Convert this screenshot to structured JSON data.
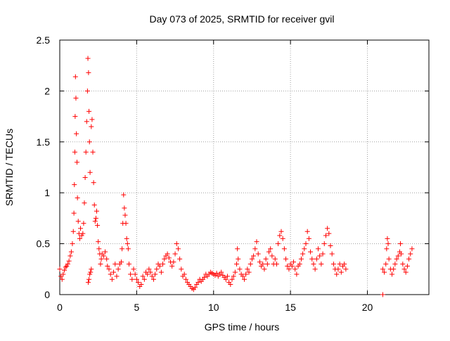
{
  "chart_data": {
    "type": "scatter",
    "title": "Day 073 of 2025, SRMTID for receiver gvil",
    "xlabel": "GPS time / hours",
    "ylabel": "SRMTID / TECUs",
    "xlim": [
      0,
      24
    ],
    "ylim": [
      0,
      2.5
    ],
    "xticks": [
      0,
      5,
      10,
      15,
      20
    ],
    "xtick_labels": [
      "0",
      "5",
      "10",
      "15",
      "20"
    ],
    "yticks": [
      0,
      0.5,
      1,
      1.5,
      2,
      2.5
    ],
    "ytick_labels": [
      "0",
      "0.5",
      "1",
      "1.5",
      "2",
      "2.5"
    ],
    "grid": true,
    "marker": "+",
    "series": [
      {
        "name": "SRMTID",
        "color": "#ff0000",
        "points": [
          [
            0.0,
            0.25
          ],
          [
            0.08,
            0.18
          ],
          [
            0.15,
            0.15
          ],
          [
            0.22,
            0.2
          ],
          [
            0.3,
            0.24
          ],
          [
            0.38,
            0.27
          ],
          [
            0.45,
            0.28
          ],
          [
            0.52,
            0.3
          ],
          [
            0.6,
            0.33
          ],
          [
            0.68,
            0.38
          ],
          [
            0.75,
            0.42
          ],
          [
            0.82,
            0.5
          ],
          [
            0.88,
            0.62
          ],
          [
            0.92,
            0.8
          ],
          [
            0.95,
            1.08
          ],
          [
            0.98,
            1.4
          ],
          [
            1.0,
            1.75
          ],
          [
            1.02,
            2.14
          ],
          [
            1.05,
            1.93
          ],
          [
            1.08,
            1.58
          ],
          [
            1.12,
            1.3
          ],
          [
            1.15,
            0.95
          ],
          [
            1.2,
            0.72
          ],
          [
            1.25,
            0.6
          ],
          [
            1.3,
            0.55
          ],
          [
            1.35,
            0.65
          ],
          [
            1.42,
            0.58
          ],
          [
            1.5,
            0.6
          ],
          [
            1.55,
            0.7
          ],
          [
            1.6,
            0.9
          ],
          [
            1.65,
            1.15
          ],
          [
            1.7,
            1.4
          ],
          [
            1.75,
            1.7
          ],
          [
            1.8,
            2.0
          ],
          [
            1.83,
            2.32
          ],
          [
            1.87,
            2.18
          ],
          [
            1.9,
            1.8
          ],
          [
            1.93,
            1.5
          ],
          [
            1.97,
            1.2
          ],
          [
            1.85,
            0.12
          ],
          [
            1.9,
            0.15
          ],
          [
            1.95,
            0.2
          ],
          [
            2.0,
            0.22
          ],
          [
            2.05,
            0.25
          ],
          [
            2.05,
            1.65
          ],
          [
            2.1,
            1.72
          ],
          [
            2.15,
            1.4
          ],
          [
            2.2,
            1.1
          ],
          [
            2.25,
            0.88
          ],
          [
            2.3,
            0.72
          ],
          [
            2.35,
            0.75
          ],
          [
            2.4,
            0.82
          ],
          [
            2.45,
            0.68
          ],
          [
            2.5,
            0.52
          ],
          [
            2.55,
            0.45
          ],
          [
            2.6,
            0.4
          ],
          [
            2.65,
            0.3
          ],
          [
            2.7,
            0.35
          ],
          [
            2.75,
            0.4
          ],
          [
            2.85,
            0.38
          ],
          [
            2.95,
            0.42
          ],
          [
            3.05,
            0.35
          ],
          [
            3.1,
            0.28
          ],
          [
            3.2,
            0.25
          ],
          [
            3.3,
            0.2
          ],
          [
            3.4,
            0.15
          ],
          [
            3.5,
            0.22
          ],
          [
            3.6,
            0.3
          ],
          [
            3.7,
            0.18
          ],
          [
            3.8,
            0.25
          ],
          [
            3.9,
            0.3
          ],
          [
            4.0,
            0.32
          ],
          [
            4.05,
            0.45
          ],
          [
            4.1,
            0.7
          ],
          [
            4.15,
            0.98
          ],
          [
            4.2,
            0.85
          ],
          [
            4.25,
            0.78
          ],
          [
            4.3,
            0.7
          ],
          [
            4.35,
            0.55
          ],
          [
            4.4,
            0.5
          ],
          [
            4.45,
            0.45
          ],
          [
            4.5,
            0.3
          ],
          [
            4.6,
            0.2
          ],
          [
            4.7,
            0.15
          ],
          [
            4.8,
            0.25
          ],
          [
            4.9,
            0.2
          ],
          [
            5.0,
            0.15
          ],
          [
            5.1,
            0.12
          ],
          [
            5.2,
            0.08
          ],
          [
            5.3,
            0.1
          ],
          [
            5.4,
            0.18
          ],
          [
            5.5,
            0.15
          ],
          [
            5.6,
            0.22
          ],
          [
            5.7,
            0.2
          ],
          [
            5.8,
            0.25
          ],
          [
            5.9,
            0.22
          ],
          [
            6.0,
            0.18
          ],
          [
            6.1,
            0.15
          ],
          [
            6.2,
            0.2
          ],
          [
            6.3,
            0.25
          ],
          [
            6.4,
            0.3
          ],
          [
            6.5,
            0.28
          ],
          [
            6.6,
            0.22
          ],
          [
            6.7,
            0.3
          ],
          [
            6.8,
            0.35
          ],
          [
            6.9,
            0.38
          ],
          [
            7.0,
            0.4
          ],
          [
            7.1,
            0.36
          ],
          [
            7.2,
            0.32
          ],
          [
            7.3,
            0.28
          ],
          [
            7.4,
            0.32
          ],
          [
            7.5,
            0.4
          ],
          [
            7.6,
            0.5
          ],
          [
            7.7,
            0.45
          ],
          [
            7.8,
            0.35
          ],
          [
            7.9,
            0.25
          ],
          [
            8.0,
            0.18
          ],
          [
            8.1,
            0.2
          ],
          [
            8.2,
            0.15
          ],
          [
            8.3,
            0.12
          ],
          [
            8.4,
            0.1
          ],
          [
            8.5,
            0.08
          ],
          [
            8.6,
            0.06
          ],
          [
            8.7,
            0.05
          ],
          [
            8.8,
            0.07
          ],
          [
            8.9,
            0.1
          ],
          [
            9.0,
            0.12
          ],
          [
            9.1,
            0.15
          ],
          [
            9.2,
            0.13
          ],
          [
            9.3,
            0.15
          ],
          [
            9.4,
            0.17
          ],
          [
            9.5,
            0.2
          ],
          [
            9.6,
            0.18
          ],
          [
            9.7,
            0.2
          ],
          [
            9.8,
            0.22
          ],
          [
            9.9,
            0.21
          ],
          [
            10.0,
            0.2
          ],
          [
            10.1,
            0.19
          ],
          [
            10.2,
            0.21
          ],
          [
            10.3,
            0.18
          ],
          [
            10.4,
            0.2
          ],
          [
            10.5,
            0.22
          ],
          [
            10.6,
            0.19
          ],
          [
            10.7,
            0.17
          ],
          [
            10.8,
            0.15
          ],
          [
            10.9,
            0.18
          ],
          [
            11.0,
            0.12
          ],
          [
            11.1,
            0.1
          ],
          [
            11.2,
            0.15
          ],
          [
            11.3,
            0.18
          ],
          [
            11.4,
            0.22
          ],
          [
            11.5,
            0.3
          ],
          [
            11.55,
            0.45
          ],
          [
            11.6,
            0.35
          ],
          [
            11.7,
            0.25
          ],
          [
            11.8,
            0.2
          ],
          [
            11.9,
            0.18
          ],
          [
            12.0,
            0.15
          ],
          [
            12.1,
            0.2
          ],
          [
            12.2,
            0.25
          ],
          [
            12.3,
            0.22
          ],
          [
            12.4,
            0.3
          ],
          [
            12.5,
            0.35
          ],
          [
            12.6,
            0.38
          ],
          [
            12.7,
            0.45
          ],
          [
            12.8,
            0.52
          ],
          [
            12.9,
            0.4
          ],
          [
            13.0,
            0.32
          ],
          [
            13.1,
            0.28
          ],
          [
            13.2,
            0.3
          ],
          [
            13.3,
            0.25
          ],
          [
            13.4,
            0.35
          ],
          [
            13.5,
            0.3
          ],
          [
            13.6,
            0.42
          ],
          [
            13.7,
            0.45
          ],
          [
            13.8,
            0.38
          ],
          [
            13.9,
            0.3
          ],
          [
            14.0,
            0.35
          ],
          [
            14.1,
            0.3
          ],
          [
            14.2,
            0.5
          ],
          [
            14.3,
            0.58
          ],
          [
            14.4,
            0.62
          ],
          [
            14.5,
            0.55
          ],
          [
            14.6,
            0.45
          ],
          [
            14.7,
            0.35
          ],
          [
            14.8,
            0.28
          ],
          [
            14.9,
            0.25
          ],
          [
            15.0,
            0.3
          ],
          [
            15.1,
            0.28
          ],
          [
            15.2,
            0.32
          ],
          [
            15.3,
            0.25
          ],
          [
            15.4,
            0.2
          ],
          [
            15.5,
            0.28
          ],
          [
            15.6,
            0.3
          ],
          [
            15.7,
            0.35
          ],
          [
            15.8,
            0.4
          ],
          [
            15.9,
            0.45
          ],
          [
            16.0,
            0.5
          ],
          [
            16.1,
            0.62
          ],
          [
            16.2,
            0.55
          ],
          [
            16.3,
            0.42
          ],
          [
            16.4,
            0.35
          ],
          [
            16.5,
            0.3
          ],
          [
            16.6,
            0.25
          ],
          [
            16.7,
            0.35
          ],
          [
            16.8,
            0.45
          ],
          [
            16.9,
            0.38
          ],
          [
            17.0,
            0.3
          ],
          [
            17.1,
            0.4
          ],
          [
            17.2,
            0.5
          ],
          [
            17.3,
            0.58
          ],
          [
            17.4,
            0.65
          ],
          [
            17.5,
            0.6
          ],
          [
            17.6,
            0.48
          ],
          [
            17.7,
            0.4
          ],
          [
            17.8,
            0.3
          ],
          [
            17.9,
            0.25
          ],
          [
            18.0,
            0.2
          ],
          [
            18.1,
            0.25
          ],
          [
            18.2,
            0.3
          ],
          [
            18.3,
            0.22
          ],
          [
            18.4,
            0.28
          ],
          [
            18.5,
            0.3
          ],
          [
            18.6,
            0.25
          ],
          [
            21.0,
            0.0
          ],
          [
            21.0,
            0.25
          ],
          [
            21.1,
            0.22
          ],
          [
            21.2,
            0.3
          ],
          [
            21.25,
            0.45
          ],
          [
            21.3,
            0.55
          ],
          [
            21.35,
            0.5
          ],
          [
            21.4,
            0.35
          ],
          [
            21.5,
            0.25
          ],
          [
            21.6,
            0.2
          ],
          [
            21.7,
            0.25
          ],
          [
            21.8,
            0.3
          ],
          [
            21.9,
            0.35
          ],
          [
            22.0,
            0.38
          ],
          [
            22.1,
            0.42
          ],
          [
            22.15,
            0.5
          ],
          [
            22.2,
            0.4
          ],
          [
            22.3,
            0.3
          ],
          [
            22.4,
            0.25
          ],
          [
            22.5,
            0.22
          ],
          [
            22.6,
            0.28
          ],
          [
            22.7,
            0.35
          ],
          [
            22.8,
            0.4
          ],
          [
            22.9,
            0.45
          ]
        ]
      }
    ]
  }
}
